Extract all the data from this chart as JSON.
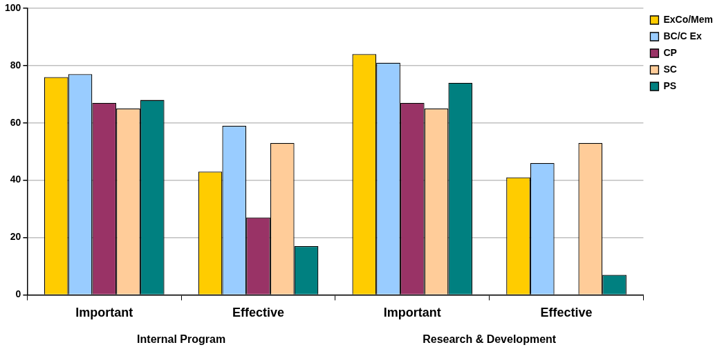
{
  "chart_data": {
    "type": "bar",
    "categories": [
      "Important",
      "Effective",
      "Important",
      "Effective"
    ],
    "series": [
      {
        "name": "ExCo/Mem",
        "color": "#ffcc00",
        "values": [
          76,
          43,
          84,
          41
        ]
      },
      {
        "name": "BC/C Ex",
        "color": "#99ccff",
        "values": [
          77,
          59,
          81,
          46
        ]
      },
      {
        "name": "CP",
        "color": "#993366",
        "values": [
          67,
          27,
          67,
          null
        ]
      },
      {
        "name": "SC",
        "color": "#ffcc99",
        "values": [
          65,
          53,
          65,
          53
        ]
      },
      {
        "name": "PS",
        "color": "#008080",
        "values": [
          68,
          17,
          74,
          7
        ]
      }
    ],
    "ylim": [
      0,
      100
    ],
    "yticks": [
      0,
      20,
      40,
      60,
      80,
      100
    ],
    "grid": "y",
    "legend": "top right",
    "annotations": [
      "Internal Program",
      "Research & Development"
    ]
  }
}
